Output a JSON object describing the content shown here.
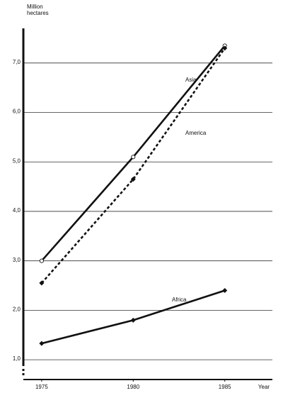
{
  "chart_data": {
    "type": "line",
    "y_label": "Million hectares",
    "x_label": "Year",
    "x": [
      1975,
      1980,
      1985
    ],
    "series": [
      {
        "name": "Asia",
        "color": "#111111",
        "line_style": "solid",
        "marker": "circle-open",
        "values": [
          3.0,
          5.1,
          7.35
        ]
      },
      {
        "name": "America",
        "color": "#111111",
        "line_style": "dashed",
        "marker": "diamond",
        "values": [
          2.55,
          4.65,
          7.3
        ]
      },
      {
        "name": "Africa",
        "color": "#111111",
        "line_style": "solid",
        "marker": "diamond",
        "values": [
          1.33,
          1.8,
          2.4
        ]
      }
    ],
    "xlim": [
      1974,
      1987.6
    ],
    "xticks": [
      1975,
      1980,
      1985
    ],
    "ylim": [
      0.6,
      7.7
    ],
    "yticks": [
      {
        "value": 1,
        "label": "1,0"
      },
      {
        "value": 2,
        "label": "2,0"
      },
      {
        "value": 3,
        "label": "3,0"
      },
      {
        "value": 4,
        "label": "4,0"
      },
      {
        "value": 5,
        "label": "5,0"
      },
      {
        "value": 6,
        "label": "6,0"
      },
      {
        "value": 7,
        "label": "7,0"
      }
    ],
    "grid": true
  }
}
